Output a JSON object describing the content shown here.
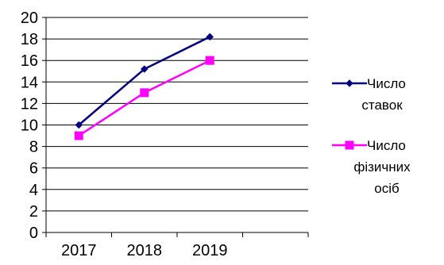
{
  "chart_data": {
    "type": "line",
    "categories": [
      "2017",
      "2018",
      "2019"
    ],
    "ylim": [
      0,
      20
    ],
    "yticks": [
      0,
      2,
      4,
      6,
      8,
      10,
      12,
      14,
      16,
      18,
      20
    ],
    "grid": true,
    "legend_position": "right",
    "series": [
      {
        "name": "Число ставок",
        "name_lines": [
          "Число",
          "ставок"
        ],
        "values": [
          10,
          15.2,
          18.2
        ],
        "color": "#000080",
        "marker": "diamond"
      },
      {
        "name": "Число фізичних осіб",
        "name_lines": [
          "Число",
          "фізичних",
          "осіб"
        ],
        "values": [
          9,
          13,
          16
        ],
        "color": "#ff00ff",
        "marker": "square"
      }
    ]
  }
}
